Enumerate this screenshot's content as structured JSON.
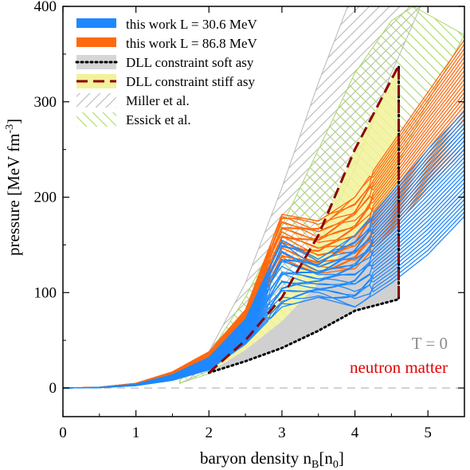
{
  "chart_data": {
    "type": "line",
    "xlabel": "baryon density n",
    "xlabel_sub1": "B",
    "xlabel_bracket_open": "[n",
    "xlabel_sub2": "0",
    "xlabel_bracket_close": "]",
    "ylabel": "pressure [MeV fm",
    "ylabel_sup": "-3",
    "ylabel_close": "]",
    "xlim": [
      0,
      5.5
    ],
    "ylim": [
      -30,
      400
    ],
    "xticks": [
      "0",
      "1",
      "2",
      "3",
      "4",
      "5"
    ],
    "yticks": [
      "0",
      "100",
      "200",
      "300",
      "400"
    ],
    "grid": false,
    "legend_position": "top-left",
    "annotations": [
      {
        "text": "T = 0",
        "color": "#8c8c8c"
      },
      {
        "text": "neutron matter",
        "color": "#e60000"
      }
    ],
    "colors": {
      "soft_band": "#1e88ff",
      "stiff_band": "#ff6a10",
      "dll_soft": "#000000",
      "dll_stiff": "#8b0000",
      "miller": "#b8b8b8",
      "essick": "#a8d86a"
    },
    "series": [
      {
        "name": "this work L = 30.6 MeV",
        "style": "blue band",
        "x": [
          0,
          0.5,
          1.0,
          1.5,
          2.0,
          2.5,
          3.0,
          3.5,
          4.0,
          4.5,
          5.0,
          5.5
        ],
        "lower": [
          0,
          0.4,
          2.5,
          8,
          19,
          46,
          85,
          95,
          85,
          110,
          140,
          180
        ],
        "upper": [
          0,
          0.6,
          4.0,
          14,
          32,
          72,
          155,
          135,
          160,
          205,
          250,
          290
        ]
      },
      {
        "name": "this work L = 86.8 MeV",
        "style": "orange band",
        "x": [
          0,
          0.5,
          1.0,
          1.5,
          2.0,
          2.5,
          3.0,
          3.5,
          4.0,
          4.5,
          5.0,
          5.5
        ],
        "lower": [
          0,
          0.5,
          3.0,
          10,
          24,
          60,
          135,
          120,
          125,
          165,
          210,
          250
        ],
        "upper": [
          0,
          0.8,
          5.0,
          17,
          38,
          82,
          182,
          175,
          200,
          255,
          310,
          365
        ]
      },
      {
        "name": "DLL constraint soft asy",
        "style": "black dotted + grey fill",
        "lower_x": [
          2.0,
          2.5,
          3.0,
          3.5,
          4.0,
          4.6
        ],
        "lower_y": [
          16,
          28,
          42,
          60,
          81,
          93
        ],
        "upper_x": [
          2.0,
          2.5,
          3.0,
          3.5,
          4.0,
          4.6
        ],
        "upper_y": [
          16,
          40,
          70,
          110,
          160,
          215
        ]
      },
      {
        "name": "DLL constraint stiff asy",
        "style": "dark red dashed + yellow fill",
        "lower_x": [
          2.0,
          2.5,
          3.0,
          3.5,
          4.0,
          4.6
        ],
        "lower_y": [
          16,
          40,
          70,
          110,
          160,
          215
        ],
        "upper_x": [
          2.0,
          2.5,
          3.0,
          3.5,
          4.0,
          4.6
        ],
        "upper_y": [
          16,
          50,
          95,
          160,
          250,
          338
        ]
      },
      {
        "name": "Miller et al.",
        "style": "grey hatched",
        "lower_x": [
          1.6,
          2.0,
          2.5,
          3.0,
          3.5,
          4.0,
          4.5,
          4.9
        ],
        "lower_y": [
          5,
          18,
          45,
          90,
          150,
          230,
          330,
          400
        ],
        "upper_x": [
          1.6,
          2.0,
          2.5,
          3.0,
          3.5,
          3.9
        ],
        "upper_y": [
          8,
          38,
          110,
          210,
          320,
          400
        ]
      },
      {
        "name": "Essick et al.",
        "style": "green hatched",
        "lower_x": [
          1.6,
          2.0,
          2.5,
          3.0,
          3.5,
          4.0,
          4.5,
          5.0,
          5.5
        ],
        "lower_y": [
          5,
          15,
          35,
          65,
          105,
          155,
          220,
          300,
          370
        ],
        "upper_x": [
          1.6,
          2.0,
          2.5,
          3.0,
          3.5,
          4.0,
          4.5,
          4.8
        ],
        "upper_y": [
          8,
          35,
          95,
          170,
          250,
          330,
          385,
          400
        ]
      }
    ]
  }
}
